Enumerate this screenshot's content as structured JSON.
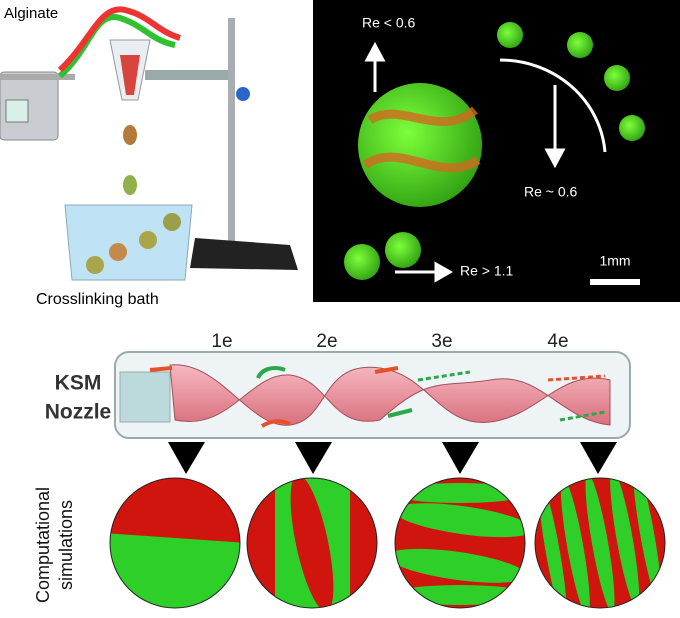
{
  "panel_a": {
    "alginate_label": "Alginate",
    "bath_label": "Crosslinking bath"
  },
  "panel_b": {
    "regimes": [
      "Re < 0.6",
      "Re ~ 0.6",
      "Re > 1.1"
    ],
    "scale_bar": "1mm"
  },
  "panel_c": {
    "nozzle_label": [
      "KSM",
      "Nozzle"
    ],
    "elements": [
      "1e",
      "2e",
      "3e",
      "4e"
    ],
    "simulations_label": [
      "Computational",
      "simulations"
    ]
  }
}
